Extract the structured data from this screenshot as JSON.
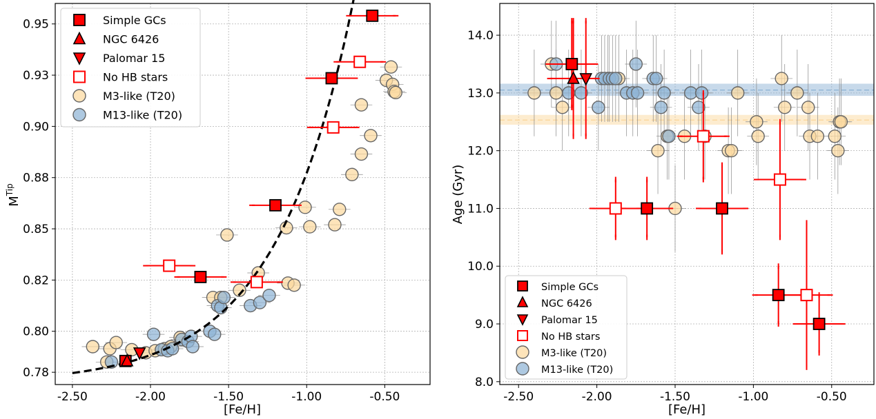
{
  "chart_data": [
    {
      "type": "scatter",
      "xlabel": "[Fe/H]",
      "ylabel_base": "M",
      "ylabel_sup": "Tip",
      "xlim": [
        -2.61,
        -0.21
      ],
      "ylim": [
        0.774,
        0.96
      ],
      "xticks": [
        -2.5,
        -2.0,
        -1.5,
        -1.0,
        -0.5
      ],
      "xtick_labels": [
        "-2.50",
        "-2.00",
        "-1.50",
        "-1.00",
        "-0.50"
      ],
      "yticks": [
        0.78,
        0.8,
        0.825,
        0.85,
        0.875,
        0.9,
        0.925,
        0.95
      ],
      "ytick_labels": [
        "0.78",
        "0.80",
        "0.82",
        "0.85",
        "0.88",
        "0.90",
        "0.93",
        "0.95"
      ],
      "grid": true,
      "legend_position": "top-left",
      "legend": [
        "Simple GCs",
        "NGC 6426",
        "Palomar 15",
        "No HB stars",
        "M3-like (T20)",
        "M13-like (T20)"
      ],
      "series": [
        {
          "name": "M3-like (T20)",
          "marker": "circle",
          "color": "#fcd9a0",
          "points": [
            [
              -2.37,
              0.7925
            ],
            [
              -2.26,
              0.7915
            ],
            [
              -2.22,
              0.7945
            ],
            [
              -2.12,
              0.791
            ],
            [
              -2.03,
              0.7895
            ],
            [
              -1.97,
              0.7905
            ],
            [
              -1.91,
              0.7915
            ],
            [
              -1.87,
              0.7925
            ],
            [
              -1.81,
              0.797
            ],
            [
              -1.6,
              0.8165
            ],
            [
              -1.55,
              0.8165
            ],
            [
              -1.51,
              0.847
            ],
            [
              -1.43,
              0.82
            ],
            [
              -1.31,
              0.8285
            ],
            [
              -1.12,
              0.8235
            ],
            [
              -1.08,
              0.8225
            ],
            [
              -1.13,
              0.8505
            ],
            [
              -1.01,
              0.8605
            ],
            [
              -0.98,
              0.851
            ],
            [
              -0.82,
              0.852
            ],
            [
              -0.79,
              0.8595
            ],
            [
              -0.71,
              0.8765
            ],
            [
              -0.65,
              0.8865
            ],
            [
              -0.65,
              0.9105
            ],
            [
              -0.59,
              0.8955
            ],
            [
              -0.49,
              0.9225
            ],
            [
              -0.46,
              0.929
            ],
            [
              -0.45,
              0.9205
            ],
            [
              -0.44,
              0.917
            ],
            [
              -0.43,
              0.9165
            ],
            [
              -2.28,
              0.785
            ]
          ]
        },
        {
          "name": "M13-like (T20)",
          "marker": "circle",
          "color": "#8fb4d6",
          "points": [
            [
              -2.25,
              0.785
            ],
            [
              -1.98,
              0.7985
            ],
            [
              -1.93,
              0.791
            ],
            [
              -1.89,
              0.7905
            ],
            [
              -1.86,
              0.7915
            ],
            [
              -1.8,
              0.796
            ],
            [
              -1.76,
              0.795
            ],
            [
              -1.74,
              0.7975
            ],
            [
              -1.73,
              0.7925
            ],
            [
              -1.62,
              0.8
            ],
            [
              -1.59,
              0.7985
            ],
            [
              -1.57,
              0.8125
            ],
            [
              -1.55,
              0.8115
            ],
            [
              -1.53,
              0.8165
            ],
            [
              -1.36,
              0.8125
            ],
            [
              -1.3,
              0.814
            ],
            [
              -1.24,
              0.8175
            ]
          ]
        },
        {
          "name": "Simple GCs",
          "marker": "square-filled",
          "color": "#ff0000",
          "points": [
            [
              -2.16,
              0.7855
            ],
            [
              -1.68,
              0.8265
            ],
            [
              -1.2,
              0.8615
            ],
            [
              -0.84,
              0.9235
            ],
            [
              -0.58,
              0.954
            ]
          ],
          "xerr": [
            0.0,
            0.15,
            0.15,
            0.15,
            0.15
          ]
        },
        {
          "name": "NGC 6426",
          "marker": "triangle-up",
          "color": "#ff0000",
          "points": [
            [
              -2.15,
              0.7855
            ]
          ],
          "xerr": [
            0.0
          ]
        },
        {
          "name": "Palomar 15",
          "marker": "triangle-down",
          "color": "#ff0000",
          "points": [
            [
              -2.07,
              0.7895
            ]
          ],
          "xerr": [
            0.0
          ]
        },
        {
          "name": "No HB stars",
          "marker": "square-open",
          "color": "#ff0000",
          "points": [
            [
              -1.88,
              0.832
            ],
            [
              -1.32,
              0.824
            ],
            [
              -0.83,
              0.8995
            ],
            [
              -0.66,
              0.9315
            ]
          ],
          "xerr": [
            0.15,
            0.15,
            0.15,
            0.15
          ]
        }
      ],
      "fit_curve": "dashed black exponential trend through the points"
    },
    {
      "type": "scatter",
      "xlabel": "[Fe/H]",
      "ylabel": "Age (Gyr)",
      "xlim": [
        -2.62,
        -0.23
      ],
      "ylim": [
        7.95,
        14.55
      ],
      "xticks": [
        -2.5,
        -2.0,
        -1.5,
        -1.0,
        -0.5
      ],
      "xtick_labels": [
        "-2.50",
        "-2.00",
        "-1.50",
        "-1.00",
        "-0.50"
      ],
      "yticks": [
        8.0,
        9.0,
        10.0,
        11.0,
        12.0,
        13.0,
        14.0
      ],
      "ytick_labels": [
        "8.0",
        "9.0",
        "10.0",
        "11.0",
        "12.0",
        "13.0",
        "14.0"
      ],
      "grid": true,
      "legend_position": "bottom-left",
      "legend": [
        "Simple GCs",
        "NGC 6426",
        "Palomar 15",
        "No HB stars",
        "M3-like (T20)",
        "M13-like (T20)"
      ],
      "reference_bands": [
        {
          "name": "M13-like (T20)",
          "center": 13.05,
          "low": 12.95,
          "high": 13.16,
          "color": "#8fb4d6"
        },
        {
          "name": "M3-like (T20)",
          "center": 12.53,
          "low": 12.45,
          "high": 12.62,
          "color": "#fcd9a0"
        }
      ],
      "series": [
        {
          "name": "M3-like (T20)",
          "marker": "circle",
          "color": "#fcd9a0",
          "points": [
            [
              -2.4,
              13.0
            ],
            [
              -2.29,
              13.5
            ],
            [
              -2.26,
              13.0
            ],
            [
              -2.22,
              12.75
            ],
            [
              -1.93,
              13.25
            ],
            [
              -1.86,
              13.25
            ],
            [
              -1.61,
              12.0
            ],
            [
              -1.55,
              12.25
            ],
            [
              -1.5,
              11.0
            ],
            [
              -1.44,
              12.25
            ],
            [
              -1.31,
              12.25
            ],
            [
              -1.16,
              12.0
            ],
            [
              -1.14,
              12.0
            ],
            [
              -1.1,
              13.0
            ],
            [
              -0.98,
              12.5
            ],
            [
              -0.97,
              12.25
            ],
            [
              -0.82,
              13.25
            ],
            [
              -0.8,
              12.75
            ],
            [
              -0.72,
              13.0
            ],
            [
              -0.65,
              12.75
            ],
            [
              -0.64,
              12.25
            ],
            [
              -0.59,
              12.25
            ],
            [
              -0.48,
              12.25
            ],
            [
              -0.46,
              12.0
            ],
            [
              -0.45,
              12.5
            ],
            [
              -0.44,
              12.5
            ]
          ]
        },
        {
          "name": "M13-like (T20)",
          "marker": "circle",
          "color": "#8fb4d6",
          "points": [
            [
              -2.26,
              13.5
            ],
            [
              -2.18,
              13.0
            ],
            [
              -2.1,
              13.0
            ],
            [
              -1.99,
              12.75
            ],
            [
              -1.97,
              13.25
            ],
            [
              -1.95,
              13.25
            ],
            [
              -1.92,
              13.25
            ],
            [
              -1.9,
              13.25
            ],
            [
              -1.88,
              13.25
            ],
            [
              -1.81,
              13.0
            ],
            [
              -1.77,
              13.0
            ],
            [
              -1.75,
              13.5
            ],
            [
              -1.74,
              13.0
            ],
            [
              -1.64,
              13.25
            ],
            [
              -1.62,
              13.25
            ],
            [
              -1.59,
              12.75
            ],
            [
              -1.57,
              13.0
            ],
            [
              -1.54,
              12.25
            ],
            [
              -1.4,
              13.0
            ],
            [
              -1.35,
              12.75
            ],
            [
              -1.33,
              13.0
            ]
          ]
        },
        {
          "name": "Simple GCs",
          "marker": "square-filled",
          "color": "#ff0000",
          "points": [
            [
              -2.16,
              13.5
            ],
            [
              -1.68,
              11.0
            ],
            [
              -1.2,
              11.0
            ],
            [
              -0.84,
              9.5
            ],
            [
              -0.58,
              9.0
            ]
          ],
          "xerr": [
            0.15,
            0.15,
            0.15,
            0.15,
            0.15
          ],
          "yerr": [
            0.75,
            0.5,
            0.75,
            0.5,
            0.5
          ]
        },
        {
          "name": "NGC 6426",
          "marker": "triangle-up",
          "color": "#ff0000",
          "points": [
            [
              -2.15,
              13.25
            ]
          ],
          "xerr": [
            0.15
          ],
          "yerr": [
            1.0
          ]
        },
        {
          "name": "Palomar 15",
          "marker": "triangle-down",
          "color": "#ff0000",
          "points": [
            [
              -2.07,
              13.25
            ]
          ],
          "xerr": [
            0.0
          ],
          "yerr": [
            1.0
          ]
        },
        {
          "name": "No HB stars",
          "marker": "square-open",
          "color": "#ff0000",
          "points": [
            [
              -1.88,
              11.0
            ],
            [
              -1.32,
              12.25
            ],
            [
              -0.83,
              11.5
            ],
            [
              -0.66,
              9.5
            ]
          ],
          "xerr": [
            0.15,
            0.15,
            0.15,
            0.15
          ],
          "yerr": [
            0.5,
            0.75,
            1.0,
            1.25
          ]
        }
      ]
    }
  ]
}
